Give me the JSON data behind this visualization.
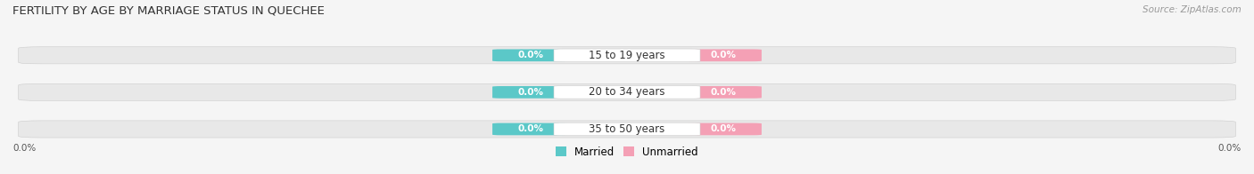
{
  "title": "FERTILITY BY AGE BY MARRIAGE STATUS IN QUECHEE",
  "source": "Source: ZipAtlas.com",
  "categories": [
    "15 to 19 years",
    "20 to 34 years",
    "35 to 50 years"
  ],
  "married_values": [
    0.0,
    0.0,
    0.0
  ],
  "unmarried_values": [
    0.0,
    0.0,
    0.0
  ],
  "married_color": "#5bc8c8",
  "unmarried_color": "#f4a0b5",
  "bar_bg_color": "#e8e8e8",
  "title_fontsize": 9.5,
  "label_fontsize": 8.5,
  "value_fontsize": 7.5,
  "source_fontsize": 7.5,
  "background_color": "#f5f5f5",
  "xlim": [
    -1.05,
    1.05
  ],
  "ylim": [
    -0.65,
    2.65
  ]
}
